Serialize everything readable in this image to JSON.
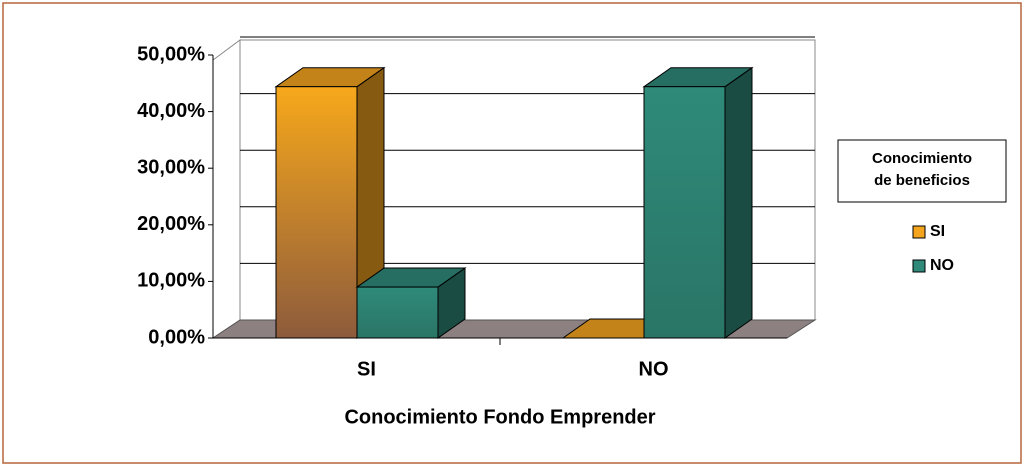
{
  "chart_data": {
    "type": "bar3d",
    "x_label": "Conocimiento Fondo Emprender",
    "legend_title": "Conocimiento de beneficios",
    "categories": [
      "SI",
      "NO"
    ],
    "series": [
      {
        "name": "SI",
        "color": "#f5a41e",
        "values": [
          44.4,
          0
        ]
      },
      {
        "name": "NO",
        "color": "#2f8a7a",
        "values": [
          9.0,
          44.4
        ]
      }
    ],
    "ylim": [
      0,
      50
    ],
    "yticks": [
      {
        "value": 0,
        "label": "0,00%"
      },
      {
        "value": 10,
        "label": "10,00%"
      },
      {
        "value": 20,
        "label": "20,00%"
      },
      {
        "value": 30,
        "label": "30,00%"
      },
      {
        "value": 40,
        "label": "40,00%"
      },
      {
        "value": 50,
        "label": "50,00%"
      }
    ],
    "grid": true,
    "legend": "right"
  }
}
